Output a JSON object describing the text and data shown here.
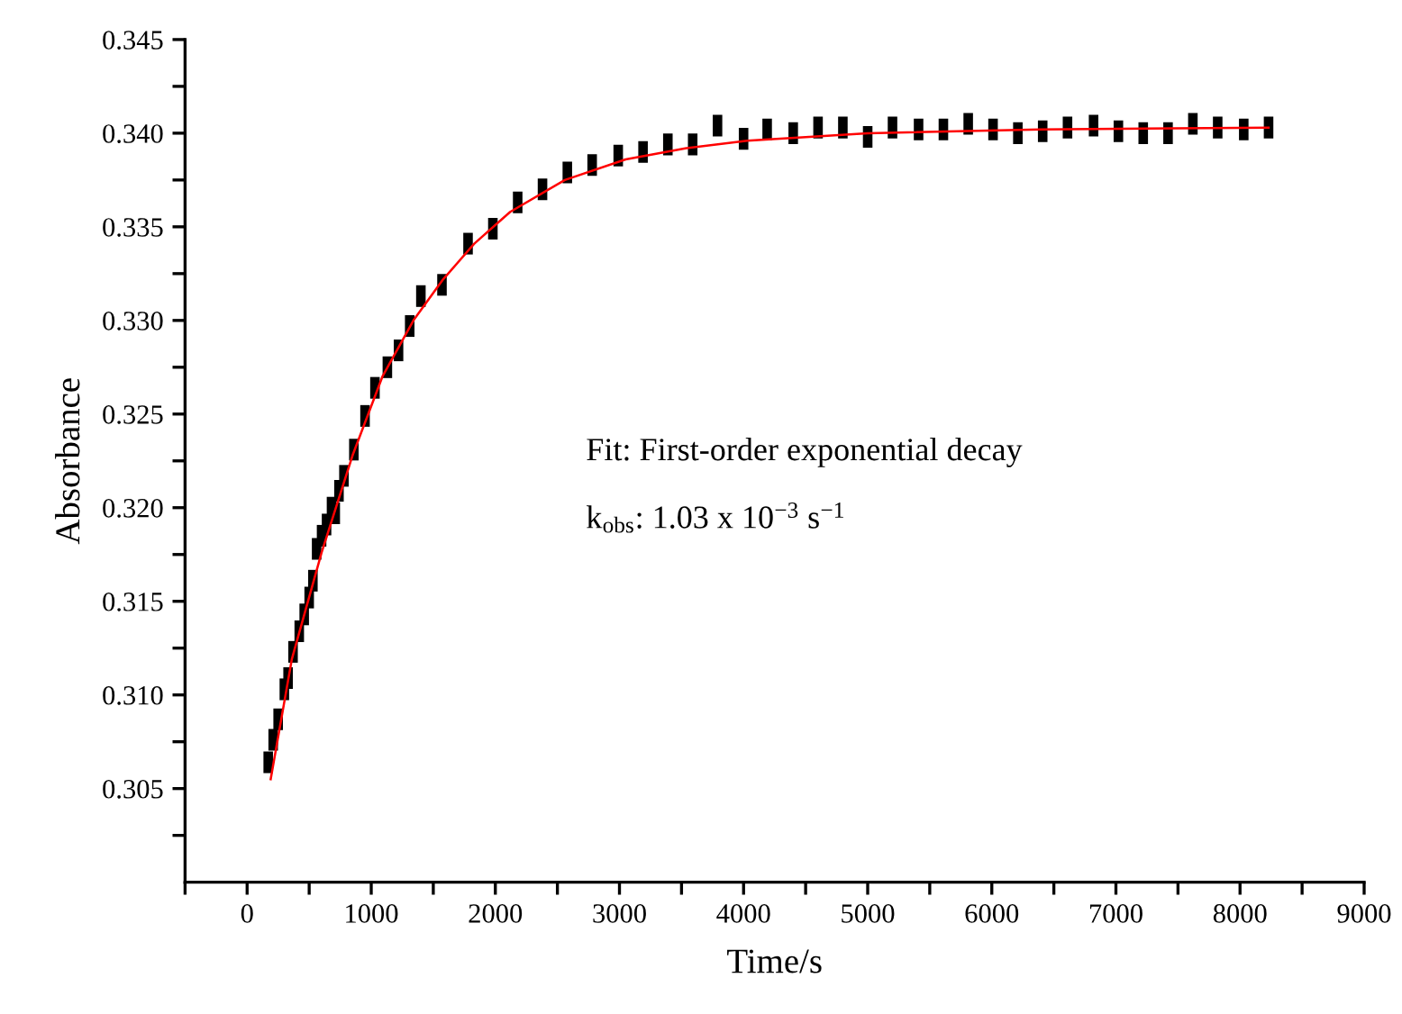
{
  "chart_data": {
    "type": "scatter",
    "xlabel": "Time/s",
    "ylabel": "Absorbance",
    "xlim": [
      -500,
      9000
    ],
    "ylim": [
      0.3,
      0.345
    ],
    "xticks": [
      {
        "value": -500,
        "label": null
      },
      0,
      {
        "value": 500,
        "label": null
      },
      1000,
      {
        "value": 1500,
        "label": null
      },
      2000,
      {
        "value": 2500,
        "label": null
      },
      3000,
      {
        "value": 3500,
        "label": null
      },
      4000,
      {
        "value": 4500,
        "label": null
      },
      5000,
      {
        "value": 5500,
        "label": null
      },
      6000,
      {
        "value": 6500,
        "label": null
      },
      7000,
      {
        "value": 7500,
        "label": null
      },
      8000,
      {
        "value": 8500,
        "label": null
      },
      9000
    ],
    "yticks": [
      {
        "value": 0.3025,
        "label": null
      },
      0.305,
      {
        "value": 0.3075,
        "label": null
      },
      {
        "value": 0.31,
        "label": "0.310"
      },
      {
        "value": 0.3125,
        "label": null
      },
      0.315,
      {
        "value": 0.3175,
        "label": null
      },
      {
        "value": 0.32,
        "label": "0.320"
      },
      {
        "value": 0.3225,
        "label": null
      },
      0.325,
      {
        "value": 0.3275,
        "label": null
      },
      {
        "value": 0.33,
        "label": "0.330"
      },
      {
        "value": 0.3325,
        "label": null
      },
      0.335,
      {
        "value": 0.3375,
        "label": null
      },
      {
        "value": 0.34,
        "label": "0.340"
      },
      {
        "value": 0.3425,
        "label": null
      },
      0.345
    ],
    "grid": false,
    "legend": false,
    "marker": "square",
    "annotations": [
      "Fit: First-order exponential decay",
      "k$_{obs}$: 1.03 x 10$^{−3}$ s$^{−1}$"
    ],
    "series": [
      {
        "color": "#000000",
        "x": [
          170,
          210,
          250,
          300,
          330,
          370,
          420,
          460,
          500,
          530,
          560,
          600,
          640,
          680,
          710,
          740,
          780,
          860,
          950,
          1030,
          1130,
          1220,
          1310,
          1400,
          1570,
          1780,
          1980,
          2180,
          2380,
          2580,
          2780,
          2990,
          3190,
          3390,
          3590,
          3790,
          4000,
          4190,
          4400,
          4600,
          4800,
          5000,
          5200,
          5410,
          5610,
          5810,
          6010,
          6210,
          6410,
          6610,
          6820,
          7020,
          7220,
          7420,
          7620,
          7820,
          8030,
          8230
        ],
        "values": [
          0.3064,
          0.3076,
          0.3087,
          0.3103,
          0.3109,
          0.3123,
          0.3134,
          0.3143,
          0.3152,
          0.3161,
          0.3178,
          0.3185,
          0.3191,
          0.32,
          0.3197,
          0.3209,
          0.3217,
          0.3231,
          0.3249,
          0.3264,
          0.3275,
          0.3284,
          0.3297,
          0.3313,
          0.3319,
          0.3341,
          0.3349,
          0.3363,
          0.337,
          0.3379,
          0.3383,
          0.3388,
          0.339,
          0.3394,
          0.3394,
          0.3404,
          0.3397,
          0.3402,
          0.34,
          0.3403,
          0.3403,
          0.3398,
          0.3403,
          0.3402,
          0.3402,
          0.3405,
          0.3402,
          0.34,
          0.3401,
          0.3403,
          0.3404,
          0.3401,
          0.34,
          0.34,
          0.3405,
          0.3403,
          0.3402,
          0.3403
        ]
      },
      {
        "type": "line",
        "color": "#ff0000",
        "marker": "none",
        "line_style": "solid",
        "x": [
          190,
          360,
          600,
          850,
          1090,
          1340,
          1580,
          1830,
          2120,
          2560,
          3050,
          3540,
          4030,
          4530,
          5000,
          6390,
          8230
        ],
        "values": [
          0.3055,
          0.3119,
          0.3176,
          0.3228,
          0.327,
          0.33,
          0.3322,
          0.3341,
          0.3358,
          0.3375,
          0.3386,
          0.3392,
          0.3396,
          0.3398,
          0.34,
          0.3402,
          0.3403
        ]
      }
    ]
  }
}
